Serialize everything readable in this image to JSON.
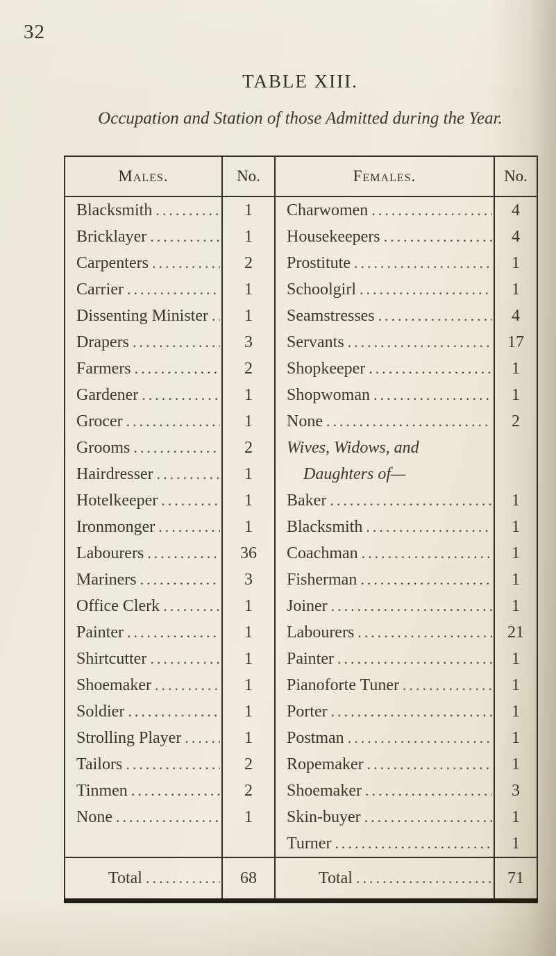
{
  "page": {
    "number": "32",
    "title": "TABLE XIII.",
    "subtitle": "Occupation and Station of those Admitted during the Year."
  },
  "table": {
    "headers": {
      "males": "Males.",
      "males_no": "No.",
      "females": "Females.",
      "females_no": "No."
    },
    "rows": [
      {
        "m": "Blacksmith",
        "mn": "1",
        "f": "Charwomen",
        "fn": "4"
      },
      {
        "m": "Bricklayer",
        "mn": "1",
        "f": "Housekeepers",
        "fn": "4"
      },
      {
        "m": "Carpenters",
        "mn": "2",
        "f": "Prostitute",
        "fn": "1"
      },
      {
        "m": "Carrier",
        "mn": "1",
        "f": "Schoolgirl",
        "fn": "1"
      },
      {
        "m": "Dissenting Minister",
        "mn": "1",
        "f": "Seamstresses",
        "fn": "4"
      },
      {
        "m": "Drapers",
        "mn": "3",
        "f": "Servants",
        "fn": "17"
      },
      {
        "m": "Farmers",
        "mn": "2",
        "f": "Shopkeeper",
        "fn": "1"
      },
      {
        "m": "Gardener",
        "mn": "1",
        "f": "Shopwoman",
        "fn": "1"
      },
      {
        "m": "Grocer",
        "mn": "1",
        "f": "None",
        "fn": "2"
      },
      {
        "m": "Grooms",
        "mn": "2",
        "f": "Wives, Widows, and",
        "fn": "",
        "ftype": "group1"
      },
      {
        "m": "Hairdresser",
        "mn": "1",
        "f": "Daughters of—",
        "fn": "",
        "ftype": "group2"
      },
      {
        "m": "Hotelkeeper",
        "mn": "1",
        "f": "Baker",
        "fn": "1"
      },
      {
        "m": "Ironmonger",
        "mn": "1",
        "f": "Blacksmith",
        "fn": "1"
      },
      {
        "m": "Labourers",
        "mn": "36",
        "f": "Coachman",
        "fn": "1"
      },
      {
        "m": "Mariners",
        "mn": "3",
        "f": "Fisherman",
        "fn": "1"
      },
      {
        "m": "Office Clerk",
        "mn": "1",
        "f": "Joiner",
        "fn": "1"
      },
      {
        "m": "Painter",
        "mn": "1",
        "f": "Labourers",
        "fn": "21"
      },
      {
        "m": "Shirtcutter",
        "mn": "1",
        "f": "Painter",
        "fn": "1"
      },
      {
        "m": "Shoemaker",
        "mn": "1",
        "f": "Pianoforte Tuner",
        "fn": "1"
      },
      {
        "m": "Soldier",
        "mn": "1",
        "f": "Porter",
        "fn": "1"
      },
      {
        "m": "Strolling Player",
        "mn": "1",
        "f": "Postman",
        "fn": "1"
      },
      {
        "m": "Tailors",
        "mn": "2",
        "f": "Ropemaker",
        "fn": "1"
      },
      {
        "m": "Tinmen",
        "mn": "2",
        "f": "Shoemaker",
        "fn": "3"
      },
      {
        "m": "None",
        "mn": "1",
        "f": "Skin-buyer",
        "fn": "1"
      },
      {
        "m": "",
        "mn": "",
        "f": "Turner",
        "fn": "1"
      }
    ],
    "total_row": {
      "male_label": "Total",
      "male_no": "68",
      "female_label": "Total",
      "female_no": "71"
    }
  }
}
